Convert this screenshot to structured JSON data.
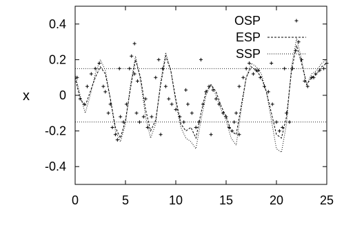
{
  "chart_data": {
    "type": "scatter",
    "ylabel": "x",
    "xlabel": "",
    "xlim": [
      0,
      25
    ],
    "ylim": [
      -0.5,
      0.5
    ],
    "xticks": [
      0,
      5,
      10,
      15,
      20,
      25
    ],
    "yticks": [
      -0.4,
      -0.2,
      0,
      0.2,
      0.4
    ],
    "ytick_labels": [
      "-0.4",
      "-0.2",
      "0",
      "0.2",
      "0.4"
    ],
    "xtick_labels": [
      "0",
      "5",
      "10",
      "15",
      "20",
      "25"
    ],
    "legend_position": "top-right",
    "reference_lines_y": [
      0.15,
      -0.15
    ],
    "series": [
      {
        "name": "OSP",
        "style": "points-plus",
        "x": [
          0.2,
          0.5,
          0.9,
          1.2,
          1.6,
          2.0,
          2.4,
          2.8,
          3.0,
          3.3,
          3.7,
          4.0,
          4.2,
          4.5,
          4.8,
          5.1,
          5.4,
          5.6,
          5.9,
          6.1,
          6.4,
          6.8,
          7.2,
          7.6,
          8.0,
          8.3,
          8.7,
          9.0,
          9.3,
          9.6,
          10.0,
          10.4,
          10.8,
          11.2,
          11.6,
          12.0,
          12.3,
          12.7,
          13.0,
          13.3,
          13.7,
          14.0,
          14.3,
          14.7,
          15.0,
          15.3,
          15.6,
          16.0,
          16.3,
          16.7,
          17.0,
          17.3,
          17.7,
          18.0,
          18.4,
          18.8,
          19.2,
          19.6,
          20.0,
          20.3,
          20.6,
          21.0,
          21.3,
          21.6,
          21.9,
          22.2,
          22.5,
          22.8,
          23.1,
          23.5,
          23.9,
          24.3,
          24.7,
          25.0,
          3.5,
          4.4,
          5.9,
          7.0,
          8.5,
          12.5,
          15.8,
          19.5,
          6.2,
          11.0,
          16.3,
          20.8,
          13.5,
          18.2,
          23.7
        ],
        "y": [
          0.1,
          -0.02,
          -0.05,
          0.05,
          0.12,
          0.15,
          0.18,
          0.05,
          0.02,
          -0.1,
          -0.18,
          -0.22,
          -0.25,
          -0.12,
          -0.15,
          -0.05,
          0.15,
          0.22,
          0.12,
          -0.1,
          -0.15,
          -0.12,
          -0.18,
          -0.12,
          0.1,
          0.2,
          0.15,
          0.05,
          -0.02,
          -0.05,
          -0.08,
          -0.12,
          -0.15,
          -0.05,
          -0.1,
          -0.18,
          -0.15,
          -0.05,
          0.02,
          0.05,
          0.03,
          -0.02,
          -0.05,
          -0.1,
          -0.12,
          -0.18,
          -0.2,
          -0.1,
          0.05,
          0.1,
          0.15,
          0.18,
          0.12,
          0.14,
          0.1,
          0.05,
          0.02,
          -0.05,
          -0.15,
          -0.2,
          -0.18,
          -0.1,
          -0.15,
          0.15,
          0.25,
          0.3,
          0.2,
          0.08,
          0.05,
          0.1,
          0.12,
          0.14,
          0.15,
          0.18,
          -0.05,
          0.15,
          0.29,
          -0.02,
          -0.22,
          0.2,
          -0.15,
          0.18,
          0.08,
          0.03,
          -0.22,
          0.15,
          -0.22,
          0.14,
          0.1
        ]
      },
      {
        "name": "ESP",
        "style": "dashed-line",
        "x": [
          0,
          0.5,
          1.0,
          1.5,
          2.0,
          2.5,
          3.0,
          3.5,
          4.0,
          4.5,
          5.0,
          5.5,
          6.0,
          6.5,
          7.0,
          7.5,
          8.0,
          8.5,
          9.0,
          9.5,
          10.0,
          10.5,
          11.0,
          11.5,
          12.0,
          12.5,
          13.0,
          13.5,
          14.0,
          14.5,
          15.0,
          15.5,
          16.0,
          16.5,
          17.0,
          17.5,
          18.0,
          18.5,
          19.0,
          19.5,
          20.0,
          20.5,
          21.0,
          21.5,
          22.0,
          22.5,
          23.0,
          23.5,
          24.0,
          24.5,
          25.0
        ],
        "y": [
          0.1,
          -0.02,
          -0.06,
          0.02,
          0.1,
          0.16,
          0.12,
          -0.02,
          -0.18,
          -0.24,
          -0.14,
          0.04,
          0.2,
          0.1,
          -0.08,
          -0.2,
          -0.14,
          0.06,
          0.22,
          0.14,
          -0.02,
          -0.16,
          -0.2,
          -0.18,
          -0.24,
          -0.1,
          0.02,
          0.06,
          0.02,
          -0.06,
          -0.12,
          -0.2,
          -0.22,
          -0.06,
          0.1,
          0.16,
          0.14,
          0.1,
          0.02,
          -0.1,
          -0.22,
          -0.24,
          -0.12,
          0.14,
          0.28,
          0.18,
          0.06,
          0.1,
          0.12,
          0.16,
          0.18
        ]
      },
      {
        "name": "SSP",
        "style": "dotted-line",
        "x": [
          0,
          0.5,
          1.0,
          1.5,
          2.0,
          2.5,
          3.0,
          3.5,
          4.0,
          4.5,
          5.0,
          5.5,
          6.0,
          6.5,
          7.0,
          7.5,
          8.0,
          8.5,
          9.0,
          9.5,
          10.0,
          10.5,
          11.0,
          11.5,
          12.0,
          12.5,
          13.0,
          13.5,
          14.0,
          14.5,
          15.0,
          15.5,
          16.0,
          16.5,
          17.0,
          17.5,
          18.0,
          18.5,
          19.0,
          19.5,
          20.0,
          20.5,
          21.0,
          21.5,
          22.0,
          22.5,
          23.0,
          23.5,
          24.0,
          24.5,
          25.0
        ],
        "y": [
          0.12,
          0.0,
          -0.1,
          0.0,
          0.12,
          0.2,
          0.14,
          -0.02,
          -0.2,
          -0.26,
          -0.16,
          0.06,
          0.22,
          0.08,
          -0.12,
          -0.24,
          -0.16,
          0.08,
          0.24,
          0.14,
          -0.04,
          -0.18,
          -0.24,
          -0.26,
          -0.3,
          -0.14,
          0.0,
          0.06,
          0.0,
          -0.08,
          -0.14,
          -0.24,
          -0.28,
          -0.08,
          0.1,
          0.18,
          0.16,
          0.12,
          0.02,
          -0.14,
          -0.3,
          -0.32,
          -0.16,
          0.16,
          0.32,
          0.2,
          0.06,
          0.12,
          0.14,
          0.18,
          0.2
        ]
      }
    ]
  }
}
